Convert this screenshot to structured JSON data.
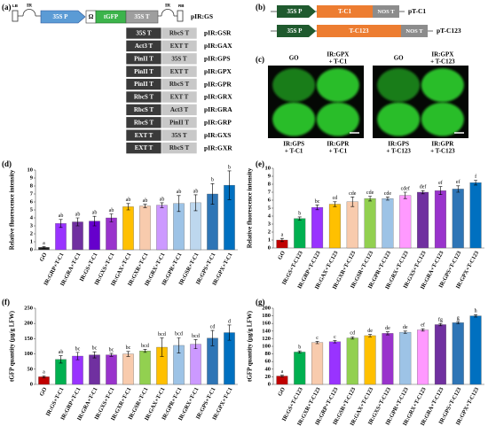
{
  "construct_a": {
    "label": "(a)",
    "lb": "LB",
    "rb": "RB",
    "ir": "IR",
    "promoter": "35S P",
    "omega": "Ω",
    "gene": "tGFP",
    "terminator": "35S T",
    "name": "pIR:GS",
    "rows": [
      [
        "35S T",
        "RbcS T",
        "pIR:GSR"
      ],
      [
        "Act3 T",
        "EXT T",
        "pIR:GAX"
      ],
      [
        "PinII T",
        "35S T",
        "pIR:GPS"
      ],
      [
        "PinII T",
        "EXT T",
        "pIR:GPX"
      ],
      [
        "PinII T",
        "RbcS T",
        "pIR:GPR"
      ],
      [
        "RbcS T",
        "EXT T",
        "pIR:GRX"
      ],
      [
        "RbcS T",
        "Act3 T",
        "pIR:GRA"
      ],
      [
        "RbcS T",
        "PinII T",
        "pIR:GRP"
      ],
      [
        "EXT T",
        "35S T",
        "pIR:GXS"
      ],
      [
        "EXT T",
        "RbcS T",
        "pIR:GXR"
      ]
    ]
  },
  "construct_b": {
    "label": "(b)",
    "rows": [
      {
        "promoter": "35S P",
        "gene": "T-C1",
        "terminator": "NOS T",
        "name": "pT-C1"
      },
      {
        "promoter": "35S P",
        "gene": "T-C123",
        "terminator": "NOS T",
        "name": "pT-C123"
      }
    ]
  },
  "leaf_c": {
    "label": "(c)",
    "images": [
      {
        "top_left": [
          "GO"
        ],
        "top_right": [
          "IR:GPX",
          "+ T-C1"
        ],
        "bottom_left": [
          "IR:GPS",
          "+ T-C1"
        ],
        "bottom_right": [
          "IR:GPR",
          "+ T-C1"
        ]
      },
      {
        "top_left": [
          "GO"
        ],
        "top_right": [
          "IR:GPX",
          "+ T-C123"
        ],
        "bottom_left": [
          "IR:GPS",
          "+ T-C123"
        ],
        "bottom_right": [
          "IR:GPR",
          "+ T-C123"
        ]
      }
    ]
  },
  "chart_data": [
    {
      "type": "bar",
      "label": "(d)",
      "ylabel": "Relative fluorescence intensity",
      "ylim": [
        0,
        10
      ],
      "yticks": [
        0,
        1,
        2,
        3,
        4,
        5,
        6,
        7,
        8,
        9,
        10
      ],
      "categories": [
        "GO",
        "IR:GRP+T-C1",
        "IR:GRA+T-C1",
        "IR:GS+T-C1",
        "IR:GXS+T-C1",
        "IR:GAX+T-C1",
        "IR:GXR+T-C1",
        "IR:GRX+T-C1",
        "IR:GPR+T-C1",
        "IR:GSR+T-C1",
        "IR:GPS+T-C1",
        "IR:GPX+T-C1"
      ],
      "values": [
        0.3,
        3.3,
        3.5,
        3.6,
        4.0,
        5.4,
        5.5,
        5.6,
        5.8,
        5.9,
        7.0,
        8.1
      ],
      "errors": [
        0.1,
        0.5,
        0.5,
        0.6,
        0.5,
        0.4,
        0.2,
        0.3,
        1.0,
        1.0,
        1.3,
        1.8
      ],
      "annotations": [
        "a",
        "ab",
        "ab",
        "ab",
        "ab",
        "ab",
        "ab",
        "ab",
        "ab",
        "ab",
        "b",
        "b"
      ],
      "colors": [
        "#222222",
        "#9933ff",
        "#7030a0",
        "#6600cc",
        "#9933cc",
        "#ffc000",
        "#f8cbad",
        "#cc99ff",
        "#9dc3e6",
        "#bdd7ee",
        "#2e75b6",
        "#0070c0"
      ]
    },
    {
      "type": "bar",
      "label": "(e)",
      "ylabel": "Relative fluorescence intensity",
      "ylim": [
        0,
        10
      ],
      "yticks": [
        0,
        1,
        2,
        3,
        4,
        5,
        6,
        7,
        8,
        9,
        10
      ],
      "categories": [
        "GO",
        "IR:GS+T-C123",
        "IR:GRP+T-C123",
        "IR:GAX+T-C123",
        "IR:GXR+T-C123",
        "IR:GSR+T-C123",
        "IR:GPR+T-C123",
        "IR:GRX+T-C123",
        "IR:GXS+T-C123",
        "IR:GRA+T-C123",
        "IR:GPS+T-C123",
        "IR:GPX+T-C123"
      ],
      "values": [
        1.0,
        3.7,
        5.1,
        5.5,
        5.8,
        6.2,
        6.2,
        6.6,
        7.0,
        7.2,
        7.4,
        8.2
      ],
      "errors": [
        0.2,
        0.2,
        0.3,
        0.3,
        0.6,
        0.3,
        0.2,
        0.4,
        0.2,
        0.5,
        0.4,
        0.3
      ],
      "annotations": [
        "a",
        "b",
        "bc",
        "cd",
        "cde",
        "cde",
        "cde",
        "cdef",
        "def",
        "ef",
        "ef",
        "f"
      ],
      "colors": [
        "#c00000",
        "#00b050",
        "#9933ff",
        "#ffc000",
        "#f8cbad",
        "#92d050",
        "#9dc3e6",
        "#ff99ff",
        "#7030a0",
        "#9933cc",
        "#2e75b6",
        "#0070c0"
      ]
    },
    {
      "type": "bar",
      "label": "(f)",
      "ylabel": "tGFP quantity (μg/g LFW)",
      "ylim": [
        0,
        250
      ],
      "yticks": [
        0,
        50,
        100,
        150,
        200,
        250
      ],
      "categories": [
        "GO",
        "IR:GS+T-C1",
        "IR:GRP+T-C1",
        "IR:GRA+T-C1",
        "IR:GXS+T-C1",
        "IR:GXR+T-C1",
        "IR:GSR+T-C1",
        "IR:GAX+T-C1",
        "IR:GPR+T-C1",
        "IR:GRX+T-C1",
        "IR:GPS+T-C1",
        "IR:GPX+T-C1"
      ],
      "values": [
        25,
        82,
        93,
        97,
        97,
        100,
        110,
        122,
        128,
        132,
        152,
        170
      ],
      "errors": [
        3,
        12,
        12,
        10,
        5,
        8,
        5,
        30,
        25,
        15,
        25,
        25
      ],
      "annotations": [
        "a",
        "ab",
        "bc",
        "bc",
        "bc",
        "bc",
        "bcd",
        "bcd",
        "bcd",
        "bcd",
        "cd",
        "d"
      ],
      "colors": [
        "#c00000",
        "#00b050",
        "#9933ff",
        "#7030a0",
        "#9933cc",
        "#f8cbad",
        "#92d050",
        "#ffc000",
        "#9dc3e6",
        "#cc99ff",
        "#2e75b6",
        "#0070c0"
      ]
    },
    {
      "type": "bar",
      "label": "(g)",
      "ylabel": "tGFP quantity (μg/g LFW)",
      "ylim": [
        0,
        200
      ],
      "yticks": [
        0,
        20,
        40,
        60,
        80,
        100,
        120,
        140,
        160,
        180,
        200
      ],
      "categories": [
        "GO",
        "IR:GS+T-C123",
        "IR:GXR+T-C123",
        "IR:GRP+T-C123",
        "IR:GSR+T-C123",
        "IR:GAX+T-C123",
        "IR:GXS+T-C123",
        "IR:GPR+T-C123",
        "IR:GRX+T-C123",
        "IR:GRA+T-C123",
        "IR:GPS+T-C123",
        "IR:GPX+T-C123"
      ],
      "values": [
        22,
        85,
        110,
        112,
        122,
        128,
        134,
        137,
        143,
        157,
        162,
        180
      ],
      "errors": [
        2,
        3,
        3,
        3,
        3,
        3,
        4,
        3,
        3,
        3,
        3,
        3
      ],
      "annotations": [
        "a",
        "b",
        "c",
        "c",
        "cd",
        "de",
        "de",
        "de",
        "ef",
        "fg",
        "g",
        "h"
      ],
      "colors": [
        "#c00000",
        "#00b050",
        "#f8cbad",
        "#9933ff",
        "#92d050",
        "#ffc000",
        "#9933cc",
        "#9dc3e6",
        "#ff99ff",
        "#7030a0",
        "#2e75b6",
        "#0070c0"
      ]
    }
  ]
}
